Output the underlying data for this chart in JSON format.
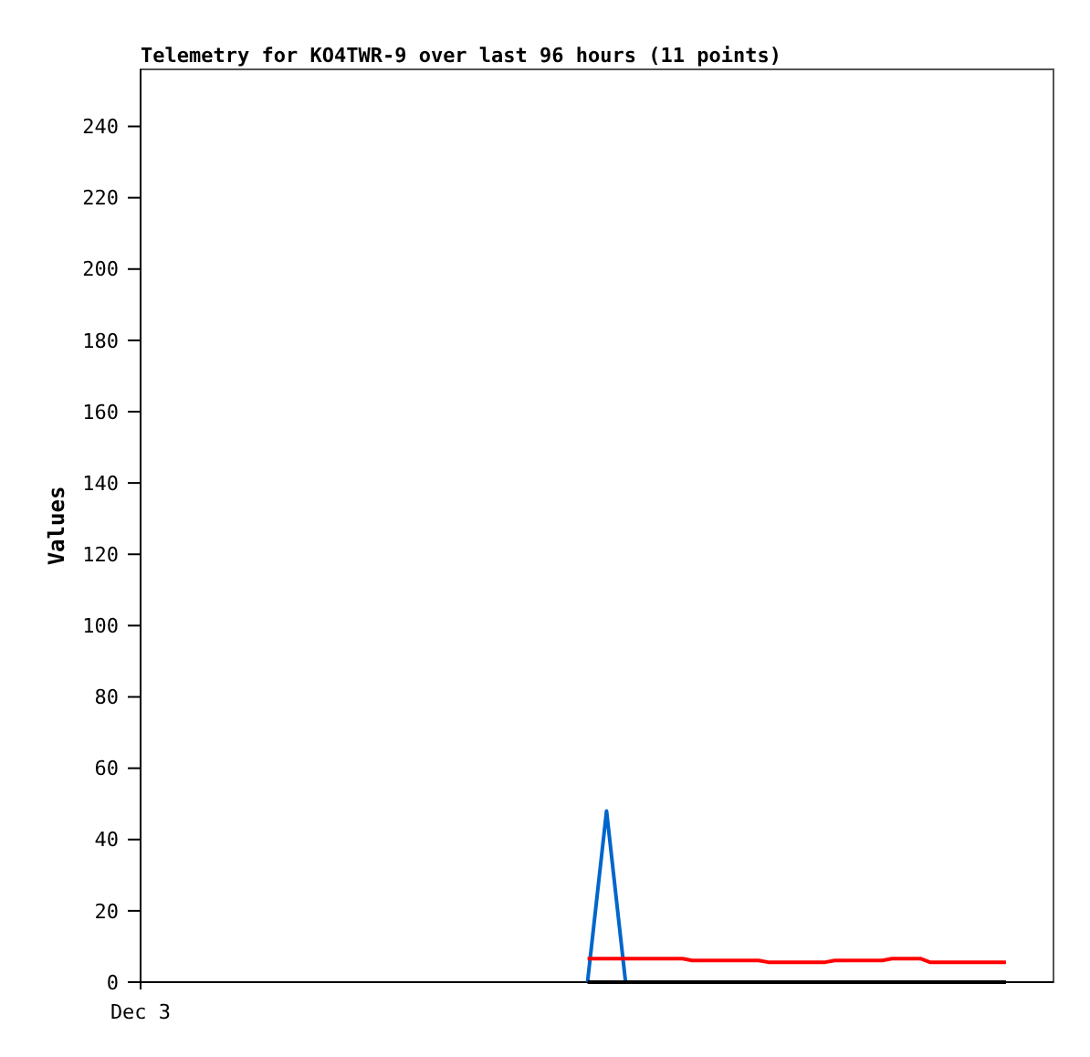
{
  "chart_data": {
    "type": "line",
    "title": "Telemetry for KO4TWR-9 over last 96 hours (11 points)",
    "ylabel": "Values",
    "categories": [
      "Dec 3",
      null,
      null,
      null,
      null,
      null,
      null,
      null,
      null,
      null,
      null,
      null,
      null,
      null,
      null,
      null,
      null,
      null,
      null,
      null,
      null,
      null,
      null,
      null,
      null,
      null,
      null,
      null,
      null,
      null,
      null,
      null,
      null,
      null,
      null,
      null,
      null,
      null,
      null,
      null,
      null,
      null,
      null,
      null,
      null,
      null,
      null,
      null,
      null,
      null,
      null,
      null,
      null,
      null,
      null,
      null,
      null,
      null,
      null,
      null,
      null,
      null,
      null,
      null,
      null,
      null,
      null,
      null,
      null,
      null,
      null,
      null,
      null,
      null,
      null,
      null,
      null,
      null,
      null,
      null,
      null,
      null,
      null,
      null,
      null,
      null,
      null,
      null,
      null,
      null,
      null,
      null,
      null,
      null,
      null,
      null,
      null
    ],
    "ylim": [
      0,
      256
    ],
    "yticks": [
      0,
      20,
      40,
      60,
      80,
      100,
      120,
      140,
      160,
      180,
      200,
      220,
      240
    ],
    "grid": false,
    "marker": "none",
    "line_style": "solid",
    "series": [
      {
        "color": "#0066cc",
        "values": [
          null,
          null,
          null,
          null,
          null,
          null,
          null,
          null,
          null,
          null,
          null,
          null,
          null,
          null,
          null,
          null,
          null,
          null,
          null,
          null,
          null,
          null,
          null,
          null,
          null,
          null,
          null,
          null,
          null,
          null,
          null,
          null,
          null,
          null,
          null,
          null,
          null,
          null,
          null,
          null,
          null,
          null,
          null,
          null,
          null,
          null,
          null,
          0,
          null,
          48,
          null,
          0,
          null,
          null,
          null,
          null,
          null,
          null,
          null,
          null,
          null,
          null,
          null,
          null,
          null,
          null,
          null,
          null,
          null,
          null,
          null,
          null,
          null,
          null,
          null,
          null,
          null,
          null,
          null,
          null,
          null,
          null,
          null,
          null,
          null,
          null,
          null,
          null,
          null,
          null,
          null,
          null,
          null,
          null,
          null,
          null,
          null
        ]
      },
      {
        "color": "#ff0000",
        "values": [
          null,
          null,
          null,
          null,
          null,
          null,
          null,
          null,
          null,
          null,
          null,
          null,
          null,
          null,
          null,
          null,
          null,
          null,
          null,
          null,
          null,
          null,
          null,
          null,
          null,
          null,
          null,
          null,
          null,
          null,
          null,
          null,
          null,
          null,
          null,
          null,
          null,
          null,
          null,
          null,
          null,
          null,
          null,
          null,
          null,
          null,
          null,
          6.6,
          6.6,
          6.6,
          6.6,
          6.6,
          6.6,
          6.6,
          6.6,
          6.6,
          6.6,
          6.6,
          6.1,
          6.1,
          6.1,
          6.1,
          6.1,
          6.1,
          6.1,
          6.1,
          5.6,
          5.6,
          5.6,
          5.6,
          5.6,
          5.6,
          5.6,
          6.1,
          6.1,
          6.1,
          6.1,
          6.1,
          6.1,
          6.6,
          6.6,
          6.6,
          6.6,
          5.6,
          5.6,
          5.6,
          5.6,
          5.6,
          5.6,
          5.6,
          5.6,
          5.6,
          null,
          null,
          null,
          null,
          null
        ]
      },
      {
        "color": "#000000",
        "values": [
          null,
          null,
          null,
          null,
          null,
          null,
          null,
          null,
          null,
          null,
          null,
          null,
          null,
          null,
          null,
          null,
          null,
          null,
          null,
          null,
          null,
          null,
          null,
          null,
          null,
          null,
          null,
          null,
          null,
          null,
          null,
          null,
          null,
          null,
          null,
          null,
          null,
          null,
          null,
          null,
          null,
          null,
          null,
          null,
          null,
          null,
          null,
          0,
          0,
          0,
          0,
          0,
          0,
          0,
          0,
          0,
          0,
          0,
          0,
          0,
          0,
          0,
          0,
          0,
          0,
          0,
          0,
          0,
          0,
          0,
          0,
          0,
          0,
          0,
          0,
          0,
          0,
          0,
          0,
          0,
          0,
          0,
          0,
          0,
          0,
          0,
          0,
          0,
          0,
          0,
          0,
          0,
          null,
          null,
          null,
          null,
          null
        ]
      }
    ]
  }
}
